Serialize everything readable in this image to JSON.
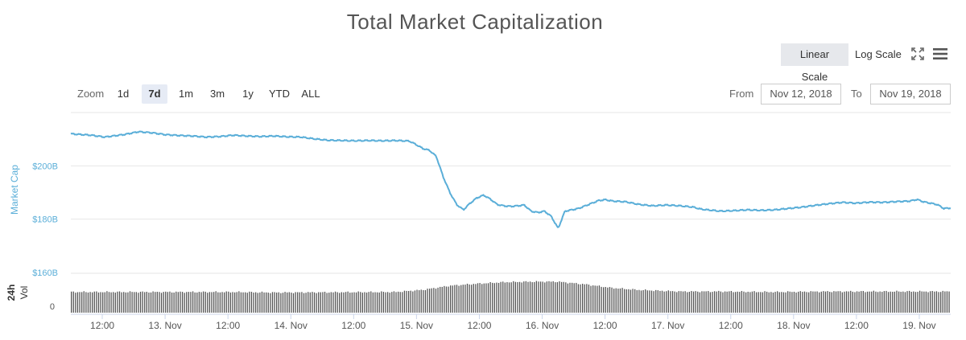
{
  "header": {
    "title": "Total Market Capitalization"
  },
  "scale": {
    "linear_label": "Linear Scale",
    "log_label": "Log Scale",
    "active": "linear"
  },
  "icons": {
    "fullscreen": "fullscreen-icon",
    "menu": "hamburger-menu-icon"
  },
  "zoom": {
    "label": "Zoom",
    "buttons": [
      "1d",
      "7d",
      "1m",
      "3m",
      "1y",
      "YTD",
      "ALL"
    ],
    "active": "7d"
  },
  "range": {
    "from_label": "From",
    "from_value": "Nov 12, 2018",
    "to_label": "To",
    "to_value": "Nov 19, 2018"
  },
  "colors": {
    "line": "#5aaed8",
    "volume": "#555555",
    "grid": "#e6e6e6"
  },
  "chart_data": {
    "type": "line",
    "title": "Total Market Capitalization",
    "ylabel": "Market Cap",
    "volume_label": "24h Vol",
    "x_ticks": [
      "12:00",
      "13. Nov",
      "12:00",
      "14. Nov",
      "12:00",
      "15. Nov",
      "12:00",
      "16. Nov",
      "12:00",
      "17. Nov",
      "12:00",
      "18. Nov",
      "12:00",
      "19. Nov"
    ],
    "y_ticks": [
      "$160B",
      "$180B",
      "$200B"
    ],
    "volume_ticks": [
      "0"
    ],
    "ylim": [
      160,
      220
    ],
    "grid": true,
    "series": [
      {
        "name": "Market Cap",
        "values": [
          [
            0,
            212.0
          ],
          [
            3,
            211.5
          ],
          [
            5,
            210.8
          ],
          [
            8,
            211.8
          ],
          [
            10,
            212.8
          ],
          [
            12,
            212.4
          ],
          [
            14,
            211.7
          ],
          [
            16,
            211.4
          ],
          [
            18,
            211.2
          ],
          [
            20,
            210.8
          ],
          [
            22,
            211.0
          ],
          [
            24,
            211.5
          ],
          [
            26,
            211.2
          ],
          [
            28,
            211.0
          ],
          [
            30,
            211.2
          ],
          [
            32,
            210.9
          ],
          [
            34,
            210.8
          ],
          [
            36,
            210.1
          ],
          [
            38,
            209.6
          ],
          [
            40,
            209.5
          ],
          [
            42,
            209.4
          ],
          [
            44,
            209.5
          ],
          [
            46,
            209.4
          ],
          [
            48,
            209.5
          ],
          [
            50,
            209.3
          ],
          [
            51,
            208.0
          ],
          [
            52,
            206.5
          ],
          [
            53,
            205.8
          ],
          [
            54,
            203.5
          ],
          [
            55,
            196.0
          ],
          [
            56,
            190.0
          ],
          [
            57,
            185.5
          ],
          [
            58,
            183.5
          ],
          [
            59,
            186.0
          ],
          [
            60,
            188.0
          ],
          [
            61,
            189.0
          ],
          [
            62,
            187.5
          ],
          [
            63,
            185.5
          ],
          [
            64,
            185.0
          ],
          [
            65,
            184.8
          ],
          [
            66,
            185.0
          ],
          [
            67,
            185.3
          ],
          [
            68,
            183.0
          ],
          [
            69,
            182.5
          ],
          [
            70,
            183.0
          ],
          [
            71,
            181.0
          ],
          [
            72,
            176.5
          ],
          [
            73,
            183.0
          ],
          [
            74,
            183.5
          ],
          [
            75,
            184.0
          ],
          [
            76,
            185.0
          ],
          [
            77,
            186.0
          ],
          [
            78,
            187.0
          ],
          [
            79,
            187.3
          ],
          [
            80,
            186.8
          ],
          [
            82,
            186.5
          ],
          [
            84,
            185.5
          ],
          [
            86,
            185.0
          ],
          [
            88,
            185.3
          ],
          [
            90,
            185.0
          ],
          [
            92,
            184.5
          ],
          [
            93,
            183.8
          ],
          [
            94,
            183.5
          ],
          [
            96,
            183.0
          ],
          [
            98,
            183.2
          ],
          [
            100,
            183.5
          ],
          [
            102,
            183.3
          ],
          [
            104,
            183.5
          ],
          [
            106,
            184.0
          ],
          [
            108,
            184.5
          ],
          [
            110,
            185.2
          ],
          [
            112,
            185.8
          ],
          [
            114,
            186.3
          ],
          [
            116,
            186.0
          ],
          [
            118,
            186.4
          ],
          [
            120,
            186.3
          ],
          [
            122,
            186.6
          ],
          [
            124,
            186.8
          ],
          [
            125,
            187.4
          ],
          [
            126,
            186.5
          ],
          [
            128,
            185.5
          ],
          [
            129,
            184.0
          ],
          [
            130,
            184.2
          ]
        ]
      }
    ],
    "volume": [
      [
        0,
        40
      ],
      [
        24,
        40
      ],
      [
        30,
        39
      ],
      [
        48,
        40
      ],
      [
        52,
        44
      ],
      [
        56,
        52
      ],
      [
        60,
        56
      ],
      [
        64,
        59
      ],
      [
        68,
        60
      ],
      [
        72,
        60
      ],
      [
        76,
        55
      ],
      [
        80,
        48
      ],
      [
        84,
        44
      ],
      [
        90,
        41
      ],
      [
        96,
        41
      ],
      [
        104,
        40
      ],
      [
        112,
        41
      ],
      [
        120,
        41
      ],
      [
        130,
        41
      ]
    ],
    "volume_ylim": [
      0,
      70
    ]
  }
}
